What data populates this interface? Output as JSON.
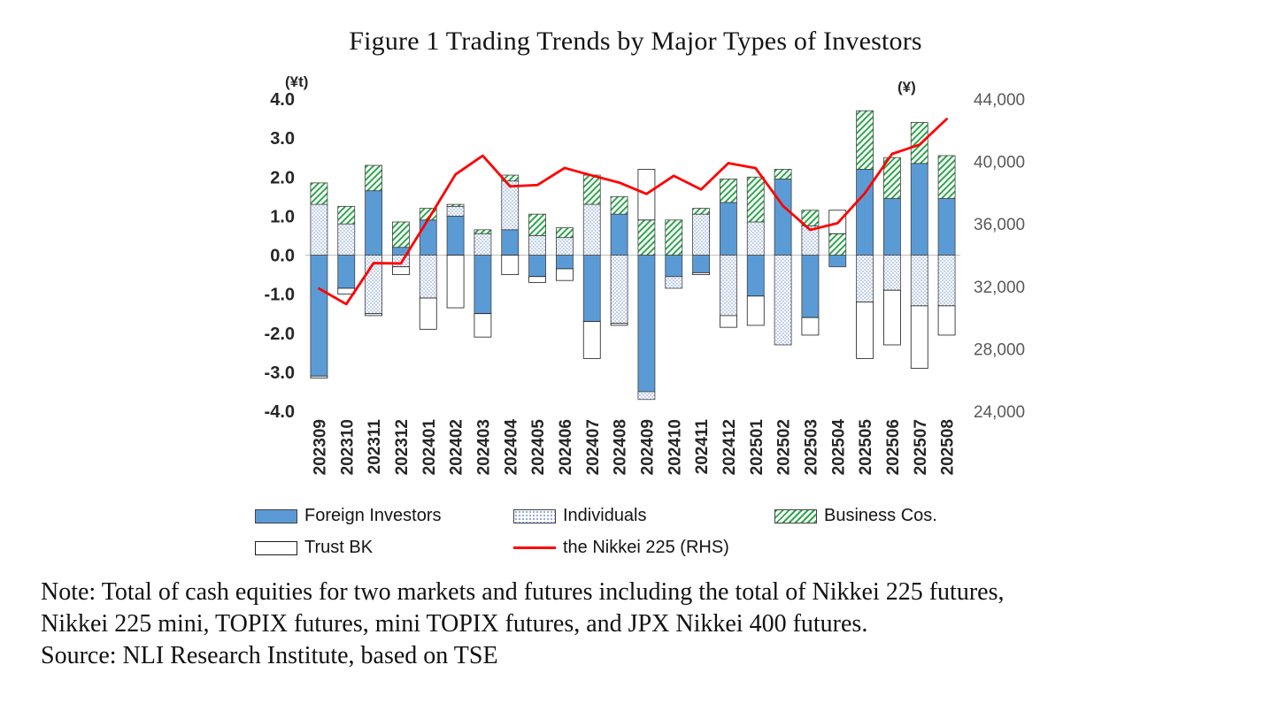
{
  "figure": {
    "title": "Figure 1 Trading Trends by Major Types of Investors",
    "note_line1": "Note: Total of cash equities for two markets and futures including the total of Nikkei 225 futures,",
    "note_line2": "Nikkei 225 mini, TOPIX futures, mini TOPIX futures, and JPX Nikkei 400 futures.",
    "source": "Source: NLI Research Institute, based on TSE"
  },
  "chart_data": {
    "type": "bar",
    "subtype": "stacked-bars-with-line",
    "title": "Figure 1 Trading Trends by Major Types of Investors",
    "units": "trillion yen (left axis), yen (right axis)",
    "grid": false,
    "legend_position": "bottom",
    "left_axis": {
      "label": "(¥t)",
      "min": -4.0,
      "max": 4.0,
      "step": 1.0
    },
    "right_axis": {
      "label": "(¥)",
      "min": 24000,
      "max": 44000,
      "step": 4000
    },
    "categories": [
      "202309",
      "202310",
      "202311",
      "202312",
      "202401",
      "202402",
      "202403",
      "202404",
      "202405",
      "202406",
      "202407",
      "202408",
      "202409",
      "202410",
      "202411",
      "202412",
      "202501",
      "202502",
      "202503",
      "202504",
      "202505",
      "202506",
      "202507",
      "202508"
    ],
    "series": [
      {
        "name": "Foreign Investors",
        "style": "solid",
        "color": "#5B9BD5",
        "values": [
          -3.1,
          -0.85,
          1.65,
          0.2,
          0.9,
          1.0,
          -1.5,
          0.65,
          -0.55,
          -0.35,
          -1.7,
          1.05,
          -3.5,
          -0.55,
          -0.45,
          1.35,
          -1.05,
          1.95,
          -1.6,
          -0.3,
          2.2,
          1.45,
          2.35,
          1.45
        ]
      },
      {
        "name": "Individuals",
        "style": "dots",
        "color": "#8FAADC",
        "values": [
          1.3,
          0.8,
          -1.5,
          -0.3,
          -1.1,
          0.25,
          0.55,
          1.25,
          0.5,
          0.45,
          1.3,
          -1.75,
          -0.2,
          -0.3,
          1.05,
          -1.55,
          0.85,
          -2.3,
          0.75,
          0.0,
          -1.2,
          -0.9,
          -1.3,
          -1.3
        ]
      },
      {
        "name": "Business Cos.",
        "style": "hatch",
        "color": "#2FA64D",
        "values": [
          0.55,
          0.45,
          0.65,
          0.65,
          0.3,
          0.05,
          0.1,
          0.15,
          0.55,
          0.25,
          0.75,
          0.45,
          0.9,
          0.9,
          0.15,
          0.6,
          1.15,
          0.25,
          0.4,
          0.55,
          1.5,
          1.05,
          1.05,
          1.1
        ]
      },
      {
        "name": "Trust BK",
        "style": "plain",
        "color": "#FFFFFF",
        "values": [
          -0.05,
          -0.15,
          -0.05,
          -0.2,
          -0.8,
          -1.35,
          -0.6,
          -0.5,
          -0.15,
          -0.3,
          -0.95,
          -0.05,
          1.3,
          0.0,
          -0.05,
          -0.3,
          -0.75,
          0.0,
          -0.45,
          0.6,
          -1.45,
          -1.4,
          -1.6,
          -0.75
        ]
      }
    ],
    "line_series": {
      "name": "the Nikkei 225 (RHS)",
      "color": "#FF0000",
      "axis": "right",
      "values": [
        31858,
        30859,
        33487,
        33464,
        36287,
        39166,
        40369,
        38406,
        38488,
        39583,
        39102,
        38648,
        37920,
        39081,
        38208,
        39895,
        39572,
        37156,
        35618,
        36045,
        37965,
        40487,
        41070,
        42718
      ]
    }
  }
}
